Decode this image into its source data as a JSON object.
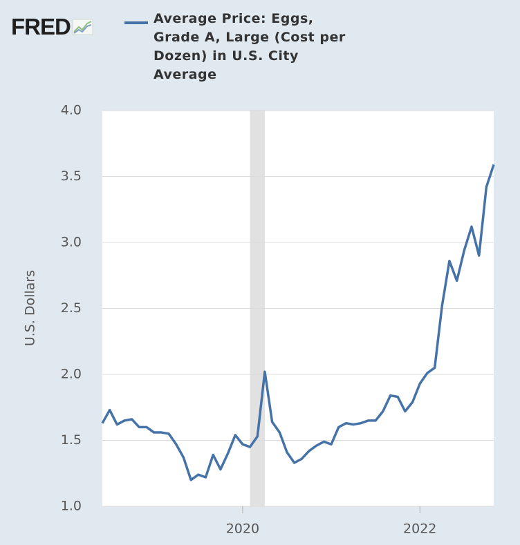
{
  "logo": "FRED",
  "chart_data": {
    "type": "line",
    "y_label": "U.S. Dollars",
    "x": [
      2018.417,
      2018.5,
      2018.583,
      2018.667,
      2018.75,
      2018.833,
      2018.917,
      2019.0,
      2019.083,
      2019.167,
      2019.25,
      2019.333,
      2019.417,
      2019.5,
      2019.583,
      2019.667,
      2019.75,
      2019.833,
      2019.917,
      2020.0,
      2020.083,
      2020.167,
      2020.25,
      2020.333,
      2020.417,
      2020.5,
      2020.583,
      2020.667,
      2020.75,
      2020.833,
      2020.917,
      2021.0,
      2021.083,
      2021.167,
      2021.25,
      2021.333,
      2021.417,
      2021.5,
      2021.583,
      2021.667,
      2021.75,
      2021.833,
      2021.917,
      2022.0,
      2022.083,
      2022.167,
      2022.25,
      2022.333,
      2022.417,
      2022.5,
      2022.583,
      2022.667,
      2022.75,
      2022.833
    ],
    "series": [
      {
        "name": "Average Price: Eggs, Grade A, Large (Cost per Dozen) in U.S. City Average",
        "color": "#4572a7",
        "values": [
          1.63,
          1.73,
          1.62,
          1.65,
          1.66,
          1.6,
          1.6,
          1.56,
          1.56,
          1.55,
          1.47,
          1.37,
          1.2,
          1.24,
          1.22,
          1.39,
          1.28,
          1.4,
          1.54,
          1.47,
          1.45,
          1.53,
          2.02,
          1.64,
          1.56,
          1.41,
          1.33,
          1.36,
          1.42,
          1.46,
          1.49,
          1.47,
          1.6,
          1.63,
          1.62,
          1.63,
          1.65,
          1.65,
          1.72,
          1.84,
          1.83,
          1.72,
          1.79,
          1.93,
          2.01,
          2.05,
          2.52,
          2.86,
          2.71,
          2.94,
          3.12,
          2.9,
          3.42,
          3.59
        ]
      }
    ],
    "shaded_x": [
      2020.083,
      2020.25
    ],
    "shade_color": "#e1e1e1",
    "xlim": [
      2018.417,
      2022.833
    ],
    "xticks": [
      2020,
      2022
    ],
    "ylim": [
      1.0,
      4.0
    ],
    "yticks": [
      {
        "value": 1,
        "label": "1.0"
      },
      1.5,
      {
        "value": 2,
        "label": "2.0"
      },
      2.5,
      {
        "value": 3,
        "label": "3.0"
      },
      3.5,
      {
        "value": 4,
        "label": "4.0"
      }
    ],
    "grid": true
  }
}
